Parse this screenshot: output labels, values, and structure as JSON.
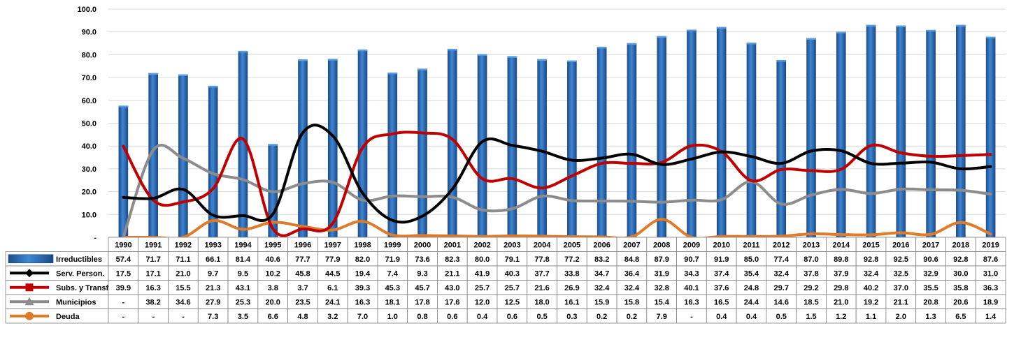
{
  "chart_data": {
    "type": "bar",
    "categories": [
      "1990",
      "1991",
      "1992",
      "1993",
      "1994",
      "1995",
      "1996",
      "1997",
      "1998",
      "1999",
      "2000",
      "2001",
      "2002",
      "2003",
      "2004",
      "2005",
      "2006",
      "2007",
      "2008",
      "2009",
      "2010",
      "2011",
      "2012",
      "2013",
      "2014",
      "2015",
      "2016",
      "2017",
      "2018",
      "2019"
    ],
    "ylim": [
      0,
      100
    ],
    "yticks": [
      "-",
      "10.0",
      "20.0",
      "30.0",
      "40.0",
      "50.0",
      "60.0",
      "70.0",
      "80.0",
      "90.0",
      "100.0"
    ],
    "grid": true,
    "legend": "data-table",
    "series": [
      {
        "name": "Irreductibles",
        "type": "bar",
        "color": "#2e6db5",
        "values": [
          57.4,
          71.7,
          71.1,
          66.1,
          81.4,
          40.6,
          77.7,
          77.9,
          82.0,
          71.9,
          73.6,
          82.3,
          80.0,
          79.1,
          77.8,
          77.2,
          83.2,
          84.8,
          87.9,
          90.7,
          91.9,
          85.0,
          77.4,
          87.0,
          89.8,
          92.8,
          92.5,
          90.6,
          92.8,
          87.6
        ],
        "labels": [
          "57.4",
          "71.7",
          "71.1",
          "66.1",
          "81.4",
          "40.6",
          "77.7",
          "77.9",
          "82.0",
          "71.9",
          "73.6",
          "82.3",
          "80.0",
          "79.1",
          "77.8",
          "77.2",
          "83.2",
          "84.8",
          "87.9",
          "90.7",
          "91.9",
          "85.0",
          "77.4",
          "87.0",
          "89.8",
          "92.8",
          "92.5",
          "90.6",
          "92.8",
          "87.6"
        ]
      },
      {
        "name": "Serv. Person.",
        "type": "line",
        "color": "#000000",
        "marker": "diamond",
        "values": [
          17.5,
          17.1,
          21.0,
          9.7,
          9.5,
          10.2,
          45.8,
          44.5,
          19.4,
          7.4,
          9.3,
          21.1,
          41.9,
          40.3,
          37.7,
          33.8,
          34.7,
          36.4,
          31.9,
          34.3,
          37.4,
          35.4,
          32.4,
          37.8,
          37.9,
          32.4,
          32.5,
          32.9,
          30.0,
          31.0
        ],
        "labels": [
          "17.5",
          "17.1",
          "21.0",
          "9.7",
          "9.5",
          "10.2",
          "45.8",
          "44.5",
          "19.4",
          "7.4",
          "9.3",
          "21.1",
          "41.9",
          "40.3",
          "37.7",
          "33.8",
          "34.7",
          "36.4",
          "31.9",
          "34.3",
          "37.4",
          "35.4",
          "32.4",
          "37.8",
          "37.9",
          "32.4",
          "32.5",
          "32.9",
          "30.0",
          "31.0"
        ]
      },
      {
        "name": "Subs. y Transf",
        "type": "line",
        "color": "#c00000",
        "marker": "square",
        "values": [
          39.9,
          16.3,
          15.5,
          21.3,
          43.1,
          3.8,
          3.7,
          6.1,
          39.3,
          45.3,
          45.7,
          43.0,
          25.7,
          25.7,
          21.6,
          26.9,
          32.4,
          32.4,
          32.8,
          40.1,
          37.6,
          24.8,
          29.7,
          29.2,
          29.8,
          40.2,
          37.0,
          35.5,
          35.8,
          36.3
        ],
        "labels": [
          "39.9",
          "16.3",
          "15.5",
          "21.3",
          "43.1",
          "3.8",
          "3.7",
          "6.1",
          "39.3",
          "45.3",
          "45.7",
          "43.0",
          "25.7",
          "25.7",
          "21.6",
          "26.9",
          "32.4",
          "32.4",
          "32.8",
          "40.1",
          "37.6",
          "24.8",
          "29.7",
          "29.2",
          "29.8",
          "40.2",
          "37.0",
          "35.5",
          "35.8",
          "36.3"
        ]
      },
      {
        "name": "Municipios",
        "type": "line",
        "color": "#8c8c8c",
        "marker": "triangle",
        "values": [
          0,
          38.2,
          34.6,
          27.9,
          25.3,
          20.0,
          23.5,
          24.1,
          16.3,
          18.1,
          17.8,
          17.6,
          12.0,
          12.5,
          18.0,
          16.1,
          15.9,
          15.8,
          15.4,
          16.3,
          16.5,
          24.4,
          14.6,
          18.5,
          21.0,
          19.2,
          21.1,
          20.8,
          20.6,
          18.9
        ],
        "labels": [
          "-",
          "38.2",
          "34.6",
          "27.9",
          "25.3",
          "20.0",
          "23.5",
          "24.1",
          "16.3",
          "18.1",
          "17.8",
          "17.6",
          "12.0",
          "12.5",
          "18.0",
          "16.1",
          "15.9",
          "15.8",
          "15.4",
          "16.3",
          "16.5",
          "24.4",
          "14.6",
          "18.5",
          "21.0",
          "19.2",
          "21.1",
          "20.8",
          "20.6",
          "18.9"
        ]
      },
      {
        "name": "Deuda",
        "type": "line",
        "color": "#e07b2a",
        "marker": "circle",
        "values": [
          0,
          0,
          0,
          7.3,
          3.5,
          6.6,
          4.8,
          3.2,
          7.0,
          1.0,
          0.8,
          0.6,
          0.4,
          0.6,
          0.5,
          0.3,
          0.2,
          0.2,
          7.9,
          0,
          0.4,
          0.4,
          0.5,
          1.5,
          1.2,
          1.1,
          2.0,
          1.3,
          6.5,
          1.4
        ],
        "labels": [
          "-",
          "-",
          "-",
          "7.3",
          "3.5",
          "6.6",
          "4.8",
          "3.2",
          "7.0",
          "1.0",
          "0.8",
          "0.6",
          "0.4",
          "0.6",
          "0.5",
          "0.3",
          "0.2",
          "0.2",
          "7.9",
          "-",
          "0.4",
          "0.4",
          "0.5",
          "1.5",
          "1.2",
          "1.1",
          "2.0",
          "1.3",
          "6.5",
          "1.4"
        ]
      }
    ]
  }
}
